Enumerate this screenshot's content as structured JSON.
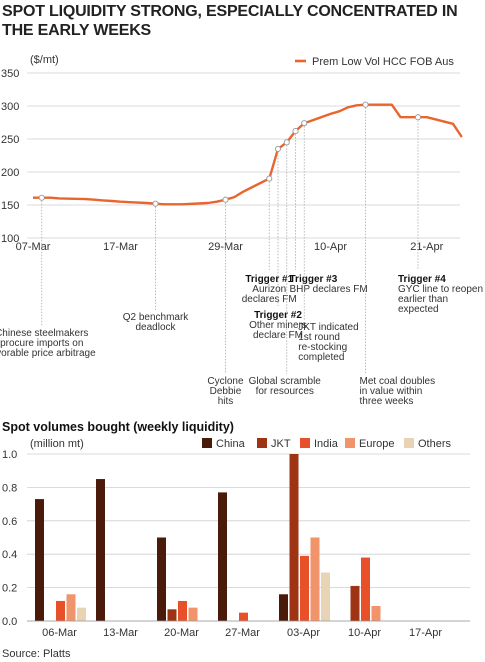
{
  "title": "SPOT LIQUIDITY STRONG, ESPECIALLY CONCENTRATED IN THE EARLY WEEKS",
  "source": "Source: Platts",
  "colors": {
    "line": "#e8652d",
    "China": "#4a1a0a",
    "JKT": "#9e3414",
    "India": "#e8502a",
    "Europe": "#f2946b",
    "Others": "#e8d4b4"
  },
  "chart_data": [
    {
      "type": "line",
      "ylabel": "($/mt)",
      "ylim": [
        100,
        350
      ],
      "yticks": [
        100,
        150,
        200,
        250,
        300,
        350
      ],
      "x_tick_labels": [
        "07-Mar",
        "17-Mar",
        "29-Mar",
        "10-Apr",
        "21-Apr"
      ],
      "legend_position": "top-right",
      "series": [
        {
          "name": "Prem Low Vol HCC FOB Aus",
          "x": [
            "07-Mar",
            "08-Mar",
            "09-Mar",
            "10-Mar",
            "13-Mar",
            "14-Mar",
            "15-Mar",
            "16-Mar",
            "17-Mar",
            "20-Mar",
            "21-Mar",
            "22-Mar",
            "23-Mar",
            "24-Mar",
            "27-Mar",
            "28-Mar",
            "29-Mar",
            "30-Mar",
            "31-Mar",
            "03-Apr",
            "04-Apr",
            "05-Apr",
            "06-Apr",
            "07-Apr",
            "10-Apr",
            "11-Apr",
            "12-Apr",
            "13-Apr",
            "14-Apr",
            "17-Apr",
            "18-Apr",
            "19-Apr",
            "20-Apr",
            "21-Apr",
            "24-Apr",
            "25-Apr"
          ],
          "values": [
            161,
            161,
            161,
            160,
            159,
            158,
            157,
            156,
            155,
            153,
            152,
            151,
            151,
            151,
            153,
            155,
            158,
            162,
            170,
            190,
            235,
            245,
            262,
            274,
            288,
            292,
            298,
            301,
            302,
            302,
            283,
            283,
            283,
            283,
            273,
            253
          ]
        }
      ],
      "annotations": [
        {
          "x": "08-Mar",
          "text": [
            "Chinese steelmakers",
            "procure imports on",
            "favorable price arbitrage"
          ]
        },
        {
          "x": "21-Mar",
          "text": [
            "Q2 benchmark",
            "deadlock"
          ]
        },
        {
          "x": "29-Mar",
          "text": [
            "Cyclone",
            "Debbie",
            "hits"
          ]
        },
        {
          "x": "03-Apr",
          "bold": "Trigger #1",
          "text": [
            "Aurizon",
            "declares FM"
          ]
        },
        {
          "x": "04-Apr",
          "bold": "Trigger #2",
          "text": [
            "Other miners",
            "declare FM"
          ]
        },
        {
          "x": "05-Apr",
          "text": [
            "Global scramble",
            "for resources"
          ]
        },
        {
          "x": "06-Apr",
          "bold": "Trigger #3",
          "text": [
            "BHP declares FM"
          ]
        },
        {
          "x": "07-Apr",
          "text": [
            "JKT indicated",
            "1st round",
            "re-stocking",
            "completed"
          ]
        },
        {
          "x": "14-Apr",
          "text": [
            "Met coal doubles",
            "in value within",
            "three weeks"
          ]
        },
        {
          "x": "20-Apr",
          "bold": "Trigger #4",
          "text": [
            "GYC line to reopen",
            "earlier than",
            "expected"
          ]
        }
      ]
    },
    {
      "type": "bar",
      "title": "Spot volumes bought (weekly liquidity)",
      "ylabel": "(million mt)",
      "ylim": [
        0,
        1.0
      ],
      "yticks": [
        0.0,
        0.2,
        0.4,
        0.6,
        0.8,
        1.0
      ],
      "legend_position": "top-right",
      "categories": [
        "06-Mar",
        "13-Mar",
        "20-Mar",
        "27-Mar",
        "03-Apr",
        "10-Apr",
        "17-Apr"
      ],
      "series": [
        {
          "name": "China",
          "values": [
            0.73,
            0.85,
            0.5,
            0.77,
            0.16,
            0.0,
            0.0
          ]
        },
        {
          "name": "JKT",
          "values": [
            0.0,
            0.0,
            0.07,
            0.0,
            1.0,
            0.21,
            0.0
          ]
        },
        {
          "name": "India",
          "values": [
            0.12,
            0.0,
            0.12,
            0.05,
            0.39,
            0.38,
            0.0
          ]
        },
        {
          "name": "Europe",
          "values": [
            0.16,
            0.0,
            0.08,
            0.0,
            0.5,
            0.09,
            0.0
          ]
        },
        {
          "name": "Others",
          "values": [
            0.08,
            0.0,
            0.0,
            0.0,
            0.29,
            0.0,
            0.0
          ]
        }
      ]
    }
  ]
}
